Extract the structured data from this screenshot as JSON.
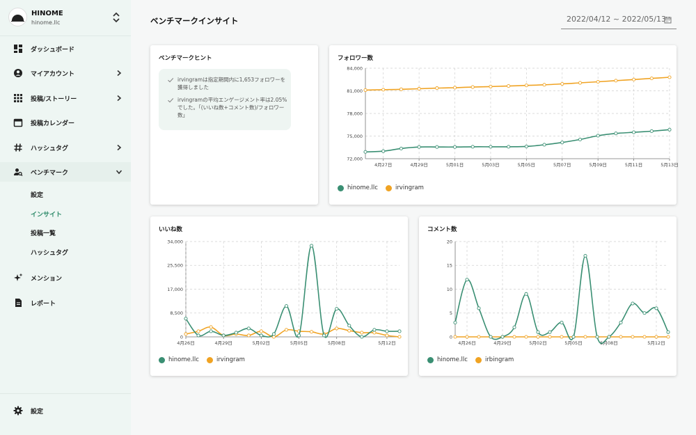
{
  "colors": {
    "accent": "#2e8b6a",
    "series_green": "#3a8f73",
    "series_orange": "#f0a323",
    "sidebar_bg": "#eef6f3"
  },
  "brand": {
    "name": "HINOME",
    "account": "hinome.llc",
    "toggle_icon": "chevron-up-down-icon"
  },
  "nav": {
    "items": [
      {
        "label": "ダッシュボード",
        "icon": "dashboard-icon"
      },
      {
        "label": "マイアカウント",
        "icon": "account-circle-icon"
      },
      {
        "label": "投稿/ストーリー",
        "icon": "grid-icon"
      },
      {
        "label": "投稿カレンダー",
        "icon": "calendar-icon"
      },
      {
        "label": "ハッシュタグ",
        "icon": "hashtag-icon"
      },
      {
        "label": "ベンチマーク",
        "icon": "person-search-icon"
      }
    ],
    "sub_items": [
      {
        "label": "設定"
      },
      {
        "label": "インサイト",
        "active": true
      },
      {
        "label": "投稿一覧"
      },
      {
        "label": "ハッシュタグ"
      }
    ],
    "more": [
      {
        "label": "メンション",
        "icon": "sparkle-icon"
      },
      {
        "label": "レポート",
        "icon": "document-icon"
      }
    ],
    "settings": {
      "label": "設定",
      "icon": "gear-icon"
    }
  },
  "header": {
    "title": "ベンチマークインサイト",
    "date_range": "2022/04/12 ~ 2022/05/13",
    "date_icon": "calendar-icon"
  },
  "hint_card": {
    "title": "ベンチマークヒント",
    "hints": [
      "irvingramは指定期間内に1,653フォロワーを獲得しました",
      "irvingramの平均エンゲージメント率は2.05%でした。「(いいね数+コメント数)/フォロワー数」"
    ]
  },
  "chart_data": [
    {
      "type": "line",
      "title": "フォロワー数",
      "x": [
        "4/26",
        "4/27",
        "4/28",
        "4/29",
        "4/30",
        "5/01",
        "5/02",
        "5/03",
        "5/04",
        "5/05",
        "5/06",
        "5/07",
        "5/08",
        "5/09",
        "5/10",
        "5/11",
        "5/12",
        "5/13"
      ],
      "x_tick_labels": [
        "4月27日",
        "4月29日",
        "5月01日",
        "5月03日",
        "5月05日",
        "5月07日",
        "5月09日",
        "5月11日",
        "5月13日"
      ],
      "x_tick_indices": [
        1,
        3,
        5,
        7,
        9,
        11,
        13,
        15,
        17
      ],
      "ylim": [
        72000,
        84000
      ],
      "y_ticks": [
        72000,
        75000,
        78000,
        81000,
        84000
      ],
      "y_tick_labels": [
        "72,000",
        "75,000",
        "78,000",
        "81,000",
        "84,000"
      ],
      "grid": true,
      "legend_position": "bottom-left",
      "series": [
        {
          "name": "hinome.llc",
          "color": "#3a8f73",
          "values": [
            72900,
            73000,
            73350,
            73550,
            73550,
            73550,
            73580,
            73580,
            73580,
            73620,
            73850,
            74150,
            74550,
            75050,
            75350,
            75500,
            75650,
            75850
          ]
        },
        {
          "name": "irvingram",
          "color": "#f0a323",
          "values": [
            81100,
            81150,
            81200,
            81280,
            81360,
            81420,
            81500,
            81560,
            81640,
            81720,
            81800,
            81920,
            82060,
            82200,
            82350,
            82500,
            82650,
            82800
          ]
        }
      ]
    },
    {
      "type": "line",
      "title": "いいね数",
      "x": [
        "4/26",
        "4/27",
        "4/28",
        "4/29",
        "4/30",
        "5/01",
        "5/02",
        "5/03",
        "5/04",
        "5/05",
        "5/06",
        "5/07",
        "5/08",
        "5/09",
        "5/10",
        "5/11",
        "5/12",
        "5/13"
      ],
      "x_tick_labels": [
        "4月26日",
        "4月29日",
        "5月02日",
        "5月05日",
        "5月08日",
        "5月12日"
      ],
      "x_tick_indices": [
        0,
        3,
        6,
        9,
        12,
        16
      ],
      "ylim": [
        0,
        34000
      ],
      "y_ticks": [
        0,
        8500,
        17000,
        25500,
        34000
      ],
      "y_tick_labels": [
        "0",
        "8,500",
        "17,000",
        "25,500",
        "34,000"
      ],
      "grid": true,
      "legend_position": "bottom-left",
      "series": [
        {
          "name": "hinome.llc",
          "color": "#3a8f73",
          "values": [
            6500,
            500,
            2000,
            500,
            1500,
            3000,
            500,
            1000,
            11000,
            500,
            32500,
            500,
            10000,
            4000,
            0,
            2500,
            2000,
            2000
          ]
        },
        {
          "name": "irvingram",
          "color": "#f0a323",
          "values": [
            1000,
            2000,
            3500,
            500,
            1000,
            500,
            2000,
            0,
            2500,
            2000,
            1800,
            1000,
            3000,
            2200,
            1500,
            1500,
            500,
            0
          ]
        }
      ]
    },
    {
      "type": "line",
      "title": "コメント数",
      "x": [
        "4/25",
        "4/26",
        "4/27",
        "4/28",
        "4/29",
        "4/30",
        "5/01",
        "5/02",
        "5/03",
        "5/04",
        "5/05",
        "5/06",
        "5/07",
        "5/08",
        "5/09",
        "5/10",
        "5/11",
        "5/12",
        "5/13"
      ],
      "x_tick_labels": [
        "4月26日",
        "4月29日",
        "5月02日",
        "5月05日",
        "5月08日",
        "5月12日"
      ],
      "x_tick_indices": [
        1,
        4,
        7,
        10,
        13,
        17
      ],
      "ylim": [
        0,
        20
      ],
      "y_ticks": [
        0,
        5,
        10,
        15,
        20
      ],
      "y_tick_labels": [
        "0",
        "5",
        "10",
        "15",
        "20"
      ],
      "grid": true,
      "legend_position": "bottom-left",
      "series": [
        {
          "name": "hinome.llc",
          "color": "#3a8f73",
          "values": [
            3,
            12,
            6,
            0,
            0,
            2,
            9,
            1,
            1,
            3,
            0,
            17,
            0,
            0,
            3,
            7,
            5,
            6,
            1
          ]
        },
        {
          "name": "irbingram",
          "color": "#f0a323",
          "values": [
            0,
            0,
            0,
            0,
            0,
            0,
            0,
            0,
            0,
            0,
            0,
            0,
            0,
            0,
            0,
            0,
            0,
            0,
            0
          ]
        }
      ]
    }
  ]
}
